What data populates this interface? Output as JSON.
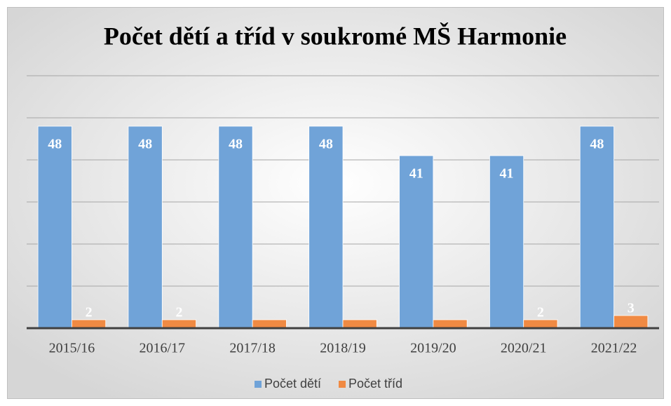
{
  "chart_data": {
    "type": "bar",
    "title": "Počet dětí a tříd v soukromé MŠ Harmonie",
    "categories": [
      "2015/16",
      "2016/17",
      "2017/18",
      "2018/19",
      "2019/20",
      "2020/21",
      "2021/22"
    ],
    "series": [
      {
        "name": "Počet dětí",
        "color": "#70a3d8",
        "values": [
          48,
          48,
          48,
          48,
          41,
          41,
          48
        ]
      },
      {
        "name": "Počet tříd",
        "color": "#f08a43",
        "values": [
          2,
          2,
          2,
          2,
          2,
          2,
          3
        ],
        "value_labels": [
          "2",
          "2",
          null,
          null,
          null,
          "2",
          "3"
        ]
      }
    ],
    "ylim": [
      0,
      60
    ],
    "yticks": [
      0,
      10,
      20,
      30,
      40,
      50,
      60
    ],
    "grid": true,
    "legend": "bottom"
  }
}
